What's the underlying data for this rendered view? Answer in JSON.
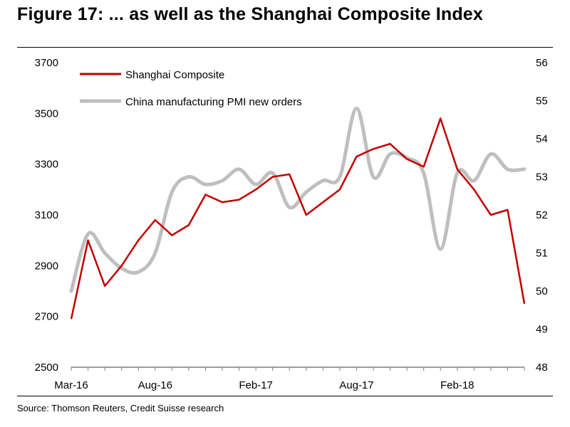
{
  "title": "Figure 17: ... as well as the Shanghai Composite Index",
  "source": "Source: Thomson Reuters, Credit Suisse research",
  "chart_data": {
    "type": "line",
    "x": [
      "Mar-16",
      "Apr-16",
      "May-16",
      "Jun-16",
      "Jul-16",
      "Aug-16",
      "Sep-16",
      "Oct-16",
      "Nov-16",
      "Dec-16",
      "Jan-17",
      "Feb-17",
      "Mar-17",
      "Apr-17",
      "May-17",
      "Jun-17",
      "Jul-17",
      "Aug-17",
      "Sep-17",
      "Oct-17",
      "Nov-17",
      "Dec-17",
      "Jan-18",
      "Feb-18",
      "Mar-18",
      "Apr-18",
      "May-18",
      "Jun-18"
    ],
    "x_tick_labels": [
      "Mar-16",
      "Aug-16",
      "Feb-17",
      "Aug-17",
      "Feb-18"
    ],
    "y_left": {
      "ylim": [
        2500,
        3700
      ],
      "ticks": [
        2500,
        2700,
        2900,
        3100,
        3300,
        3500,
        3700
      ]
    },
    "y_right": {
      "ylim": [
        48,
        56
      ],
      "ticks": [
        48,
        49,
        50,
        51,
        52,
        53,
        54,
        55,
        56
      ]
    },
    "legend_position": "top-left",
    "series": [
      {
        "name": "Shanghai Composite",
        "axis": "left",
        "color": "#c00000",
        "values": [
          2690,
          3000,
          2820,
          2900,
          3000,
          3080,
          3020,
          3060,
          3180,
          3150,
          3160,
          3200,
          3250,
          3260,
          3100,
          3150,
          3200,
          3330,
          3360,
          3380,
          3320,
          3290,
          3480,
          3280,
          3200,
          3100,
          3120,
          2750
        ]
      },
      {
        "name": "China manufacturing PMI new orders",
        "axis": "right",
        "color": "#bfbfbf",
        "values": [
          50.0,
          51.5,
          51.0,
          50.6,
          50.5,
          51.0,
          52.6,
          53.0,
          52.8,
          52.9,
          53.2,
          52.8,
          53.1,
          52.2,
          52.6,
          52.9,
          53.0,
          54.8,
          53.0,
          53.6,
          53.5,
          53.1,
          51.1,
          53.1,
          52.9,
          53.6,
          53.2,
          53.2
        ]
      }
    ]
  }
}
